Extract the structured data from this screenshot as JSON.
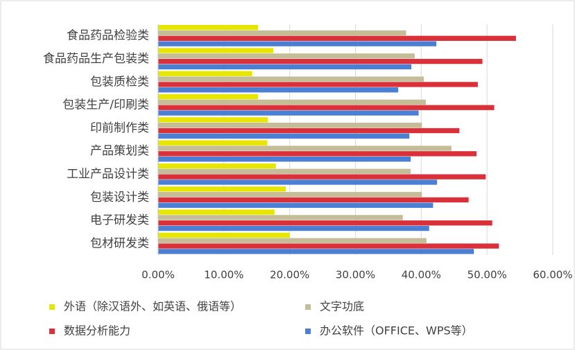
{
  "chart_data": {
    "type": "bar",
    "orientation": "horizontal",
    "categories": [
      "食品药品检验类",
      "食品药品生产包装类",
      "包装质检类",
      "包装生产/印刷类",
      "印前制作类",
      "产品策划类",
      "工业产品设计类",
      "包装设计类",
      "电子研发类",
      "包材研发类"
    ],
    "series": [
      {
        "name": "外语（除汉语外、如英语、俄语等）",
        "color": "#e6e600",
        "values": [
          15.2,
          17.5,
          14.3,
          15.2,
          16.7,
          16.6,
          17.9,
          19.4,
          17.7,
          20.0
        ]
      },
      {
        "name": "文字功底",
        "color": "#c4bd97",
        "values": [
          37.7,
          39.0,
          40.4,
          40.7,
          40.1,
          44.6,
          38.4,
          40.1,
          37.2,
          40.8
        ]
      },
      {
        "name": "数据分析能力",
        "color": "#d9303a",
        "values": [
          54.4,
          49.3,
          48.6,
          51.1,
          45.8,
          48.4,
          49.8,
          47.2,
          50.8,
          51.8
        ]
      },
      {
        "name": "办公软件（OFFICE、WPS等）",
        "color": "#4a7fd4",
        "values": [
          42.3,
          38.5,
          36.5,
          39.6,
          38.2,
          38.4,
          42.4,
          41.8,
          41.2,
          48.0
        ]
      }
    ],
    "xlim": [
      0,
      60
    ],
    "xticks": [
      {
        "value": 0,
        "label": "0.00%"
      },
      {
        "value": 10,
        "label": "10.00%"
      },
      {
        "value": 20,
        "label": "20.00%"
      },
      {
        "value": 30,
        "label": "30.00%"
      },
      {
        "value": 40,
        "label": "40.00%"
      },
      {
        "value": 50,
        "label": "50.00%"
      },
      {
        "value": 60,
        "label": "60.00%"
      }
    ],
    "grid": true,
    "legend": "bottom"
  }
}
